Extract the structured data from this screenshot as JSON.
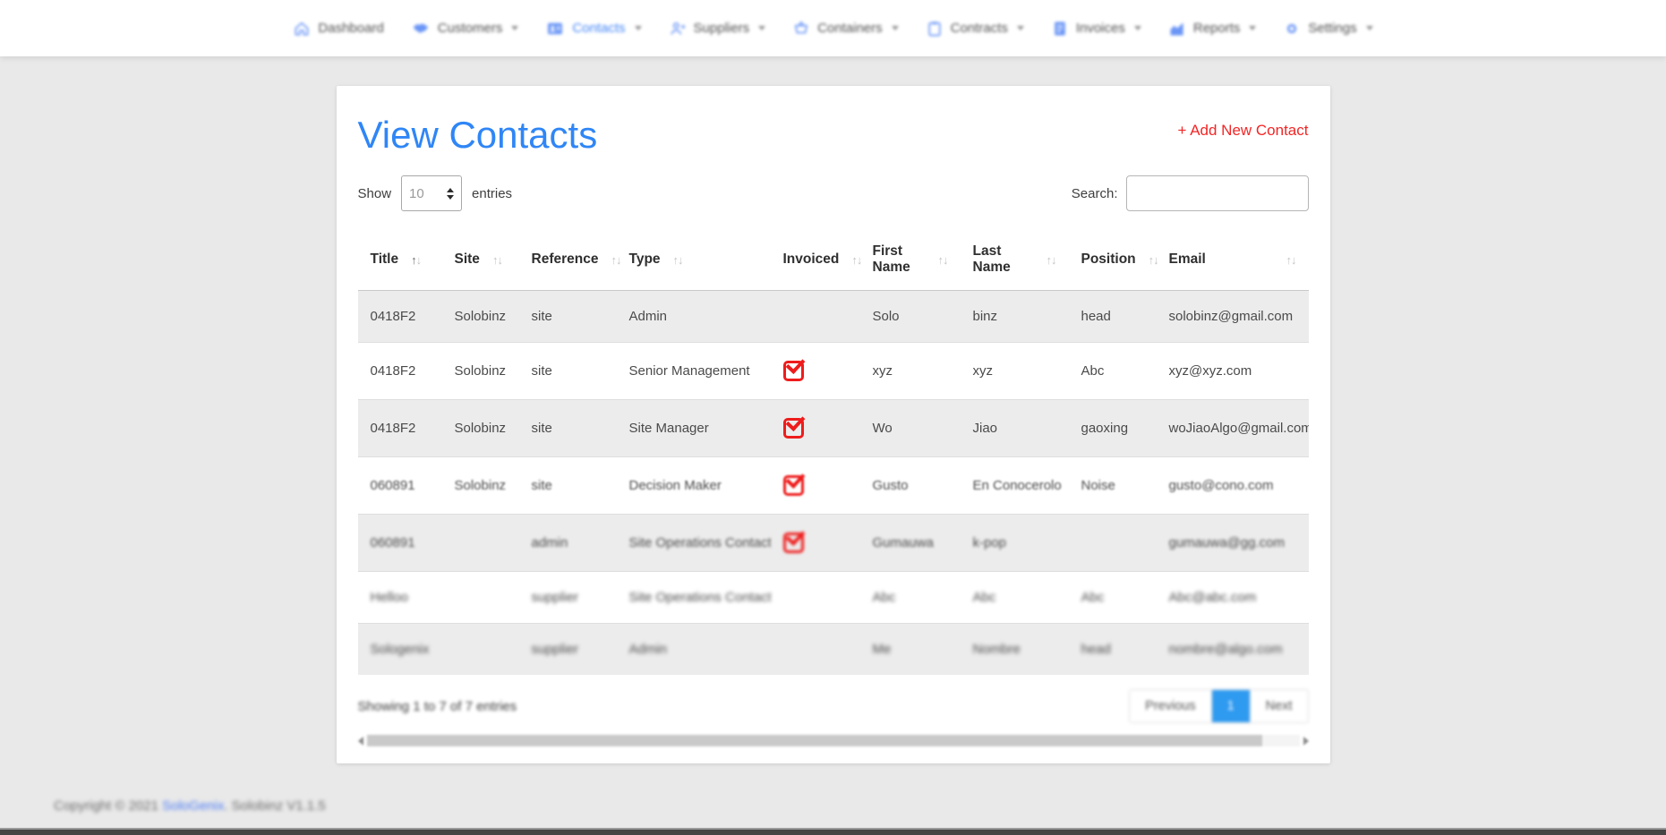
{
  "nav": {
    "items": [
      {
        "label": "Dashboard",
        "icon": "home-icon",
        "active": false,
        "chevron": false
      },
      {
        "label": "Customers",
        "icon": "handshake-icon",
        "active": false,
        "chevron": true
      },
      {
        "label": "Contacts",
        "icon": "contact-card-icon",
        "active": true,
        "chevron": true
      },
      {
        "label": "Suppliers",
        "icon": "user-plus-icon",
        "active": false,
        "chevron": true
      },
      {
        "label": "Containers",
        "icon": "cart-icon",
        "active": false,
        "chevron": true
      },
      {
        "label": "Contracts",
        "icon": "clipboard-icon",
        "active": false,
        "chevron": true
      },
      {
        "label": "Invoices",
        "icon": "invoice-icon",
        "active": false,
        "chevron": true
      },
      {
        "label": "Reports",
        "icon": "bar-chart-icon",
        "active": false,
        "chevron": true
      },
      {
        "label": "Settings",
        "icon": "gear-icon",
        "active": false,
        "chevron": true
      }
    ]
  },
  "page": {
    "title": "View Contacts",
    "add_new_label": "+ Add New Contact"
  },
  "controls": {
    "show_label": "Show",
    "entries_value": "10",
    "entries_label": "entries",
    "search_label": "Search:"
  },
  "table": {
    "columns": [
      {
        "key": "title",
        "label": "Title",
        "sortable": true
      },
      {
        "key": "site",
        "label": "Site",
        "sortable": true
      },
      {
        "key": "reference",
        "label": "Reference",
        "sortable": true
      },
      {
        "key": "type",
        "label": "Type",
        "sortable": true
      },
      {
        "key": "invoiced",
        "label": "Invoiced",
        "sortable": true
      },
      {
        "key": "first_name",
        "label": "First Name",
        "sortable": true
      },
      {
        "key": "last_name",
        "label": "Last Name",
        "sortable": true
      },
      {
        "key": "position",
        "label": "Position",
        "sortable": true
      },
      {
        "key": "email",
        "label": "Email",
        "sortable": true
      }
    ],
    "rows": [
      {
        "title": "0418F2",
        "site": "Solobinz",
        "reference": "site",
        "type": "Admin",
        "invoiced": false,
        "first_name": "Solo",
        "last_name": "binz",
        "position": "head",
        "email": "solobinz@gmail.com"
      },
      {
        "title": "0418F2",
        "site": "Solobinz",
        "reference": "site",
        "type": "Senior Management",
        "invoiced": true,
        "first_name": "xyz",
        "last_name": "xyz",
        "position": "Abc",
        "email": "xyz@xyz.com"
      },
      {
        "title": "0418F2",
        "site": "Solobinz",
        "reference": "site",
        "type": "Site Manager",
        "invoiced": true,
        "first_name": "Wo",
        "last_name": "Jiao",
        "position": "gaoxing",
        "email": "woJiaoAlgo@gmail.com"
      },
      {
        "title": "060891",
        "site": "Solobinz",
        "reference": "site",
        "type": "Decision Maker",
        "invoiced": true,
        "first_name": "Gusto",
        "last_name": "En Conocerolo",
        "position": "Noise",
        "email": "gusto@cono.com"
      },
      {
        "title": "060891",
        "site": "",
        "reference": "admin",
        "type": "Site Operations Contact",
        "invoiced": true,
        "first_name": "Gumauwa",
        "last_name": "k-pop",
        "position": "",
        "email": "gumauwa@gg.com"
      },
      {
        "title": "Helloo",
        "site": "",
        "reference": "supplier",
        "type": "Site Operations Contact",
        "invoiced": false,
        "first_name": "Abc",
        "last_name": "Abc",
        "position": "Abc",
        "email": "Abc@abc.com"
      },
      {
        "title": "Sologenix",
        "site": "",
        "reference": "supplier",
        "type": "Admin",
        "invoiced": false,
        "first_name": "Me",
        "last_name": "Nombre",
        "position": "head",
        "email": "nombre@algo.com"
      }
    ]
  },
  "pagination": {
    "showing": "Showing 1 to 7 of 7 entries",
    "previous_label": "Previous",
    "current_page": "1",
    "next_label": "Next"
  },
  "footer": {
    "copyright_prefix": "Copyright © 2021 ",
    "brand_link": "SoloGenix",
    "copyright_suffix": ". Solobinz V1.1.5"
  },
  "colors": {
    "title_blue": "#2f86f6",
    "nav_icon_blue": "#6b96f6",
    "nav_active_blue": "#4285f4",
    "add_new_red": "#f32525",
    "checkbox_red": "#ee1c1c",
    "pagination_active_blue": "#2e9af0",
    "row_stripe_gray": "#ececec"
  }
}
